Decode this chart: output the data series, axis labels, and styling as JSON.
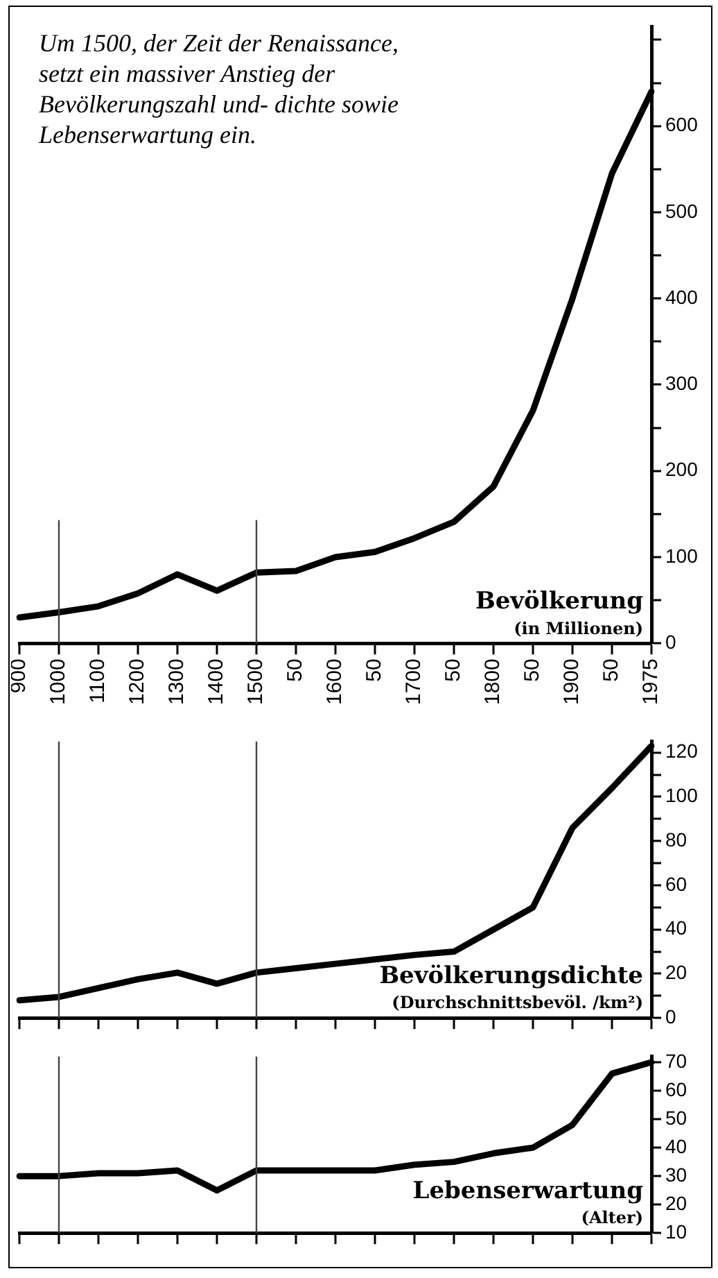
{
  "chart_data": [
    {
      "type": "line",
      "title": "Um 1500, der Zeit der Renaissance, setzt ein massiver Anstieg der Bevölkerungszahl und- dichte sowie Lebenserwartung ein.",
      "categories": [
        "900",
        "1000",
        "1100",
        "1200",
        "1300",
        "1400",
        "1500",
        "50",
        "1600",
        "50",
        "1700",
        "50",
        "1800",
        "50",
        "1900",
        "50",
        "1975"
      ],
      "series": [
        {
          "color": "#000000",
          "values": [
            30,
            36,
            43,
            58,
            80,
            61,
            82,
            84,
            100,
            106,
            122,
            141,
            182,
            270,
            400,
            545,
            640
          ]
        }
      ],
      "ylim": [
        0,
        715
      ],
      "yticks": [
        0,
        {
          "value": 50,
          "label": null
        },
        100,
        {
          "value": 150,
          "label": null
        },
        200,
        {
          "value": 250,
          "label": null
        },
        300,
        {
          "value": 350,
          "label": null
        },
        400,
        {
          "value": 450,
          "label": null
        },
        500,
        {
          "value": 550,
          "label": null
        },
        600,
        {
          "value": 650,
          "label": null
        },
        {
          "value": 700,
          "label": null
        }
      ],
      "ref_lines": [
        {
          "axis": "x",
          "value": "1000",
          "color": "#444444"
        },
        {
          "axis": "x",
          "value": "1500",
          "color": "#444444"
        }
      ],
      "annotations": [
        "Bevölkerung",
        "(in Millionen)"
      ],
      "marker": "none",
      "line_style": "solid"
    },
    {
      "type": "line",
      "categories": [
        "900",
        "1000",
        "1100",
        "1200",
        "1300",
        "1400",
        "1500",
        "50",
        "1600",
        "50",
        "1700",
        "50",
        "1800",
        "50",
        "1900",
        "50",
        "1975"
      ],
      "series": [
        {
          "color": "#000000",
          "values": [
            8,
            9.5,
            13.5,
            17.5,
            20.5,
            15.5,
            20.5,
            22.5,
            24.5,
            26.5,
            28.5,
            30,
            40,
            50,
            86,
            104,
            123
          ]
        }
      ],
      "ylim": [
        0,
        125
      ],
      "yticks": [
        0,
        {
          "value": 10,
          "label": null
        },
        20,
        {
          "value": 30,
          "label": null
        },
        40,
        {
          "value": 50,
          "label": null
        },
        60,
        {
          "value": 70,
          "label": null
        },
        80,
        {
          "value": 90,
          "label": null
        },
        100,
        {
          "value": 110,
          "label": null
        },
        120
      ],
      "ref_lines": [
        {
          "axis": "x",
          "value": "1000",
          "color": "#444444"
        },
        {
          "axis": "x",
          "value": "1500",
          "color": "#444444"
        }
      ],
      "annotations": [
        "Bevölkerungsdichte",
        "(Durchschnittsbevöl. /km²)"
      ],
      "tick_labels": "y",
      "marker": "none",
      "line_style": "solid"
    },
    {
      "type": "line",
      "categories": [
        "900",
        "1000",
        "1100",
        "1200",
        "1300",
        "1400",
        "1500",
        "50",
        "1600",
        "50",
        "1700",
        "50",
        "1800",
        "50",
        "1900",
        "50",
        "1975"
      ],
      "series": [
        {
          "color": "#000000",
          "values": [
            30,
            30,
            31,
            31,
            32,
            25,
            32,
            32,
            32,
            32,
            34,
            35,
            38,
            40,
            48,
            66,
            70
          ]
        }
      ],
      "ylim": [
        10,
        72
      ],
      "yticks": [
        10,
        20,
        30,
        40,
        50,
        60,
        70
      ],
      "ref_lines": [
        {
          "axis": "x",
          "value": "1000",
          "color": "#444444"
        },
        {
          "axis": "x",
          "value": "1500",
          "color": "#444444"
        }
      ],
      "annotations": [
        "Lebenserwartung",
        "(Alter)"
      ],
      "tick_labels": "y",
      "marker": "none",
      "line_style": "solid"
    }
  ]
}
